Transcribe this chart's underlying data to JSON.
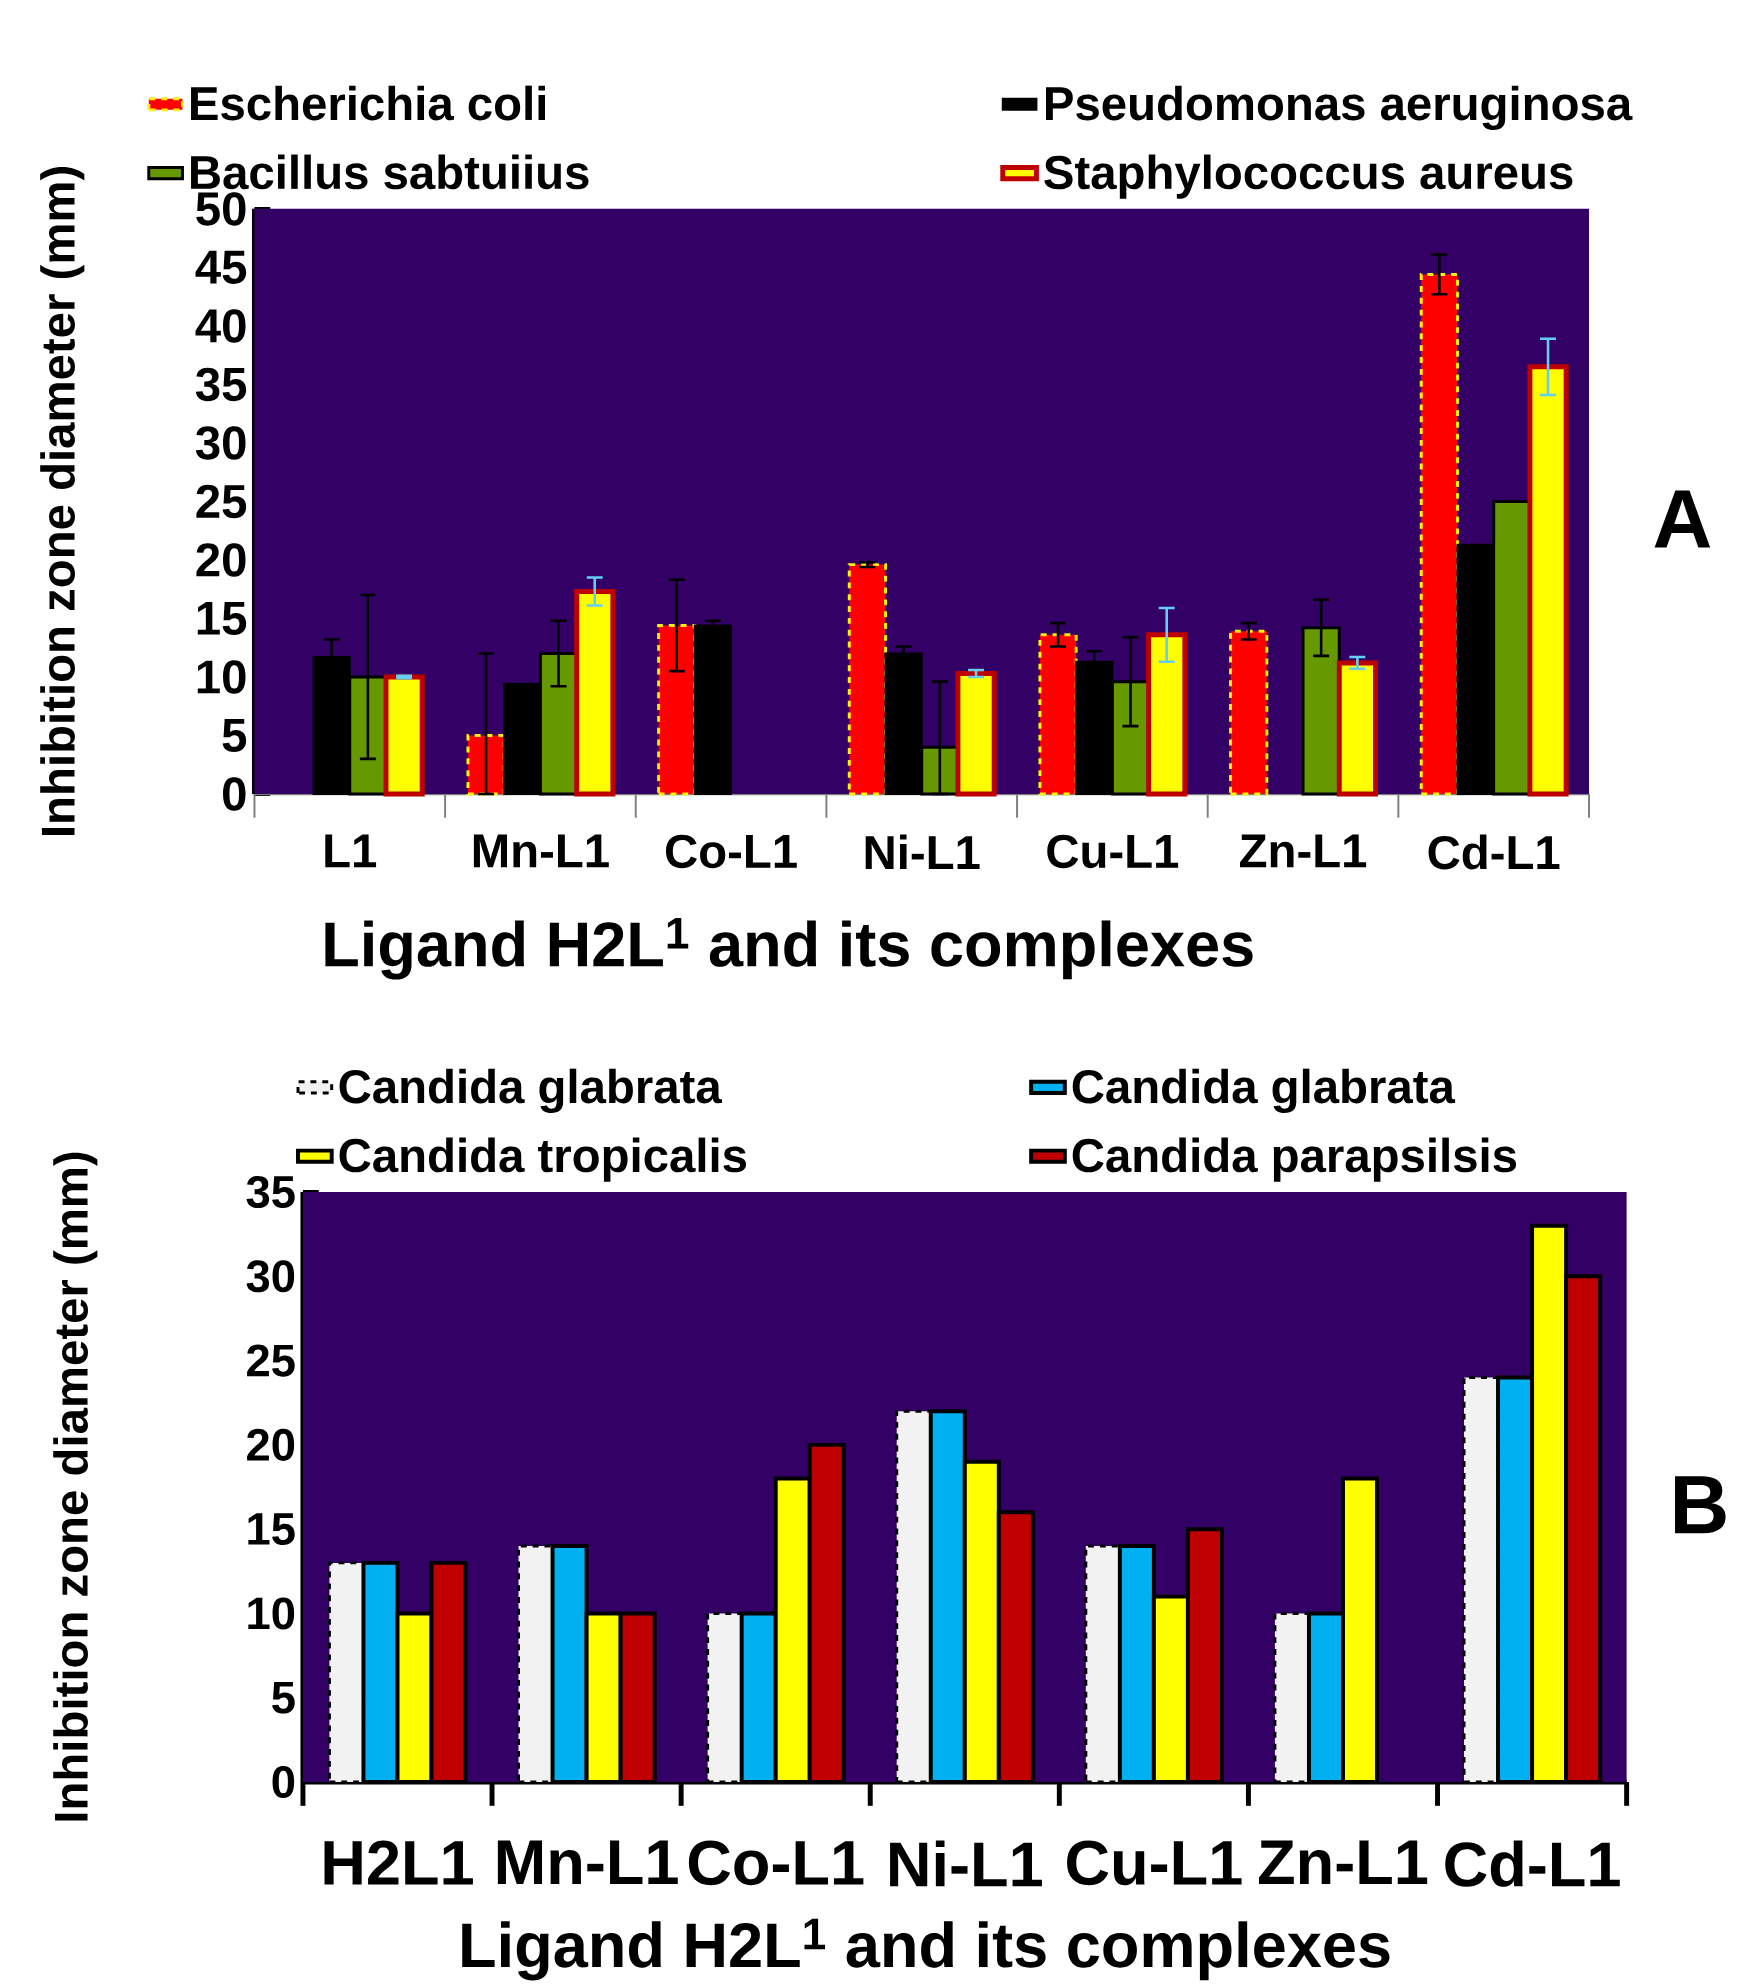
{
  "chart_data": [
    {
      "type": "bar",
      "categories": [
        "L1",
        "Mn-L1",
        "Co-L1",
        "Ni-L1",
        "Cu-L1",
        "Zn-L1",
        "Cd-L1"
      ],
      "xlabel": "Ligand H2L$^{1}$ and its complexes",
      "ylabel": "Inhibition zone diameter (mm)",
      "ylim": [
        0,
        50
      ],
      "yticks": [
        0,
        5,
        10,
        15,
        20,
        25,
        30,
        35,
        40,
        45,
        50
      ],
      "legend": "top",
      "annotations": [
        "A"
      ],
      "series": [
        {
          "name": "Escherichia coli",
          "color": "#ff0000",
          "values": [
            null,
            5,
            14.4,
            19.6,
            13.6,
            13.9,
            44.4
          ],
          "errors": [
            null,
            [
              0,
              12
            ],
            3.9,
            0.2,
            1.0,
            0.7,
            1.7
          ]
        },
        {
          "name": "Pseudomonas aeruginosa",
          "color": "#000000",
          "values": [
            11.7,
            9.4,
            14.4,
            12,
            11.3,
            null,
            21.3
          ],
          "errors": [
            1.5,
            null,
            0.4,
            0.6,
            0.9,
            null,
            null
          ]
        },
        {
          "name": "Bacillus sabtuiius",
          "color": "#669900",
          "values": [
            10,
            12,
            null,
            4,
            9.6,
            14.2,
            25
          ],
          "errors": [
            7,
            2.8,
            null,
            [
              0,
              9.6
            ],
            3.8,
            2.4,
            null
          ]
        },
        {
          "name": "Staphylococcus aureus",
          "color": "#ffff00",
          "values": [
            10,
            17.3,
            null,
            10.3,
            13.6,
            11.2,
            36.5
          ],
          "errors": [
            0.1,
            1.2,
            null,
            0.3,
            2.3,
            0.5,
            2.4
          ]
        }
      ]
    },
    {
      "type": "bar",
      "categories": [
        "H2L1",
        "Mn-L1",
        "Co-L1",
        "Ni-L1",
        "Cu-L1",
        "Zn-L1",
        "Cd-L1"
      ],
      "xlabel": "Ligand H2L$^{1}$ and its complexes",
      "ylabel": "Inhibition zone diameter (mm)",
      "ylim": [
        0,
        35
      ],
      "yticks": [
        0,
        5,
        10,
        15,
        20,
        25,
        30,
        35
      ],
      "legend": "top",
      "annotations": [
        "B"
      ],
      "series": [
        {
          "name": "Candida glabrata",
          "color": "#f2f2f2",
          "values": [
            13,
            14,
            10,
            22,
            14,
            10,
            24
          ]
        },
        {
          "name": "Candida glabrata",
          "color": "#00b0f0",
          "values": [
            13,
            14,
            10,
            22,
            14,
            10,
            24
          ]
        },
        {
          "name": "Candida tropicalis",
          "color": "#ffff00",
          "values": [
            10,
            10,
            18,
            19,
            11,
            18,
            33
          ]
        },
        {
          "name": "Candida parapsilsis",
          "color": "#c00000",
          "values": [
            13,
            10,
            20,
            16,
            15,
            null,
            30
          ]
        }
      ]
    }
  ]
}
